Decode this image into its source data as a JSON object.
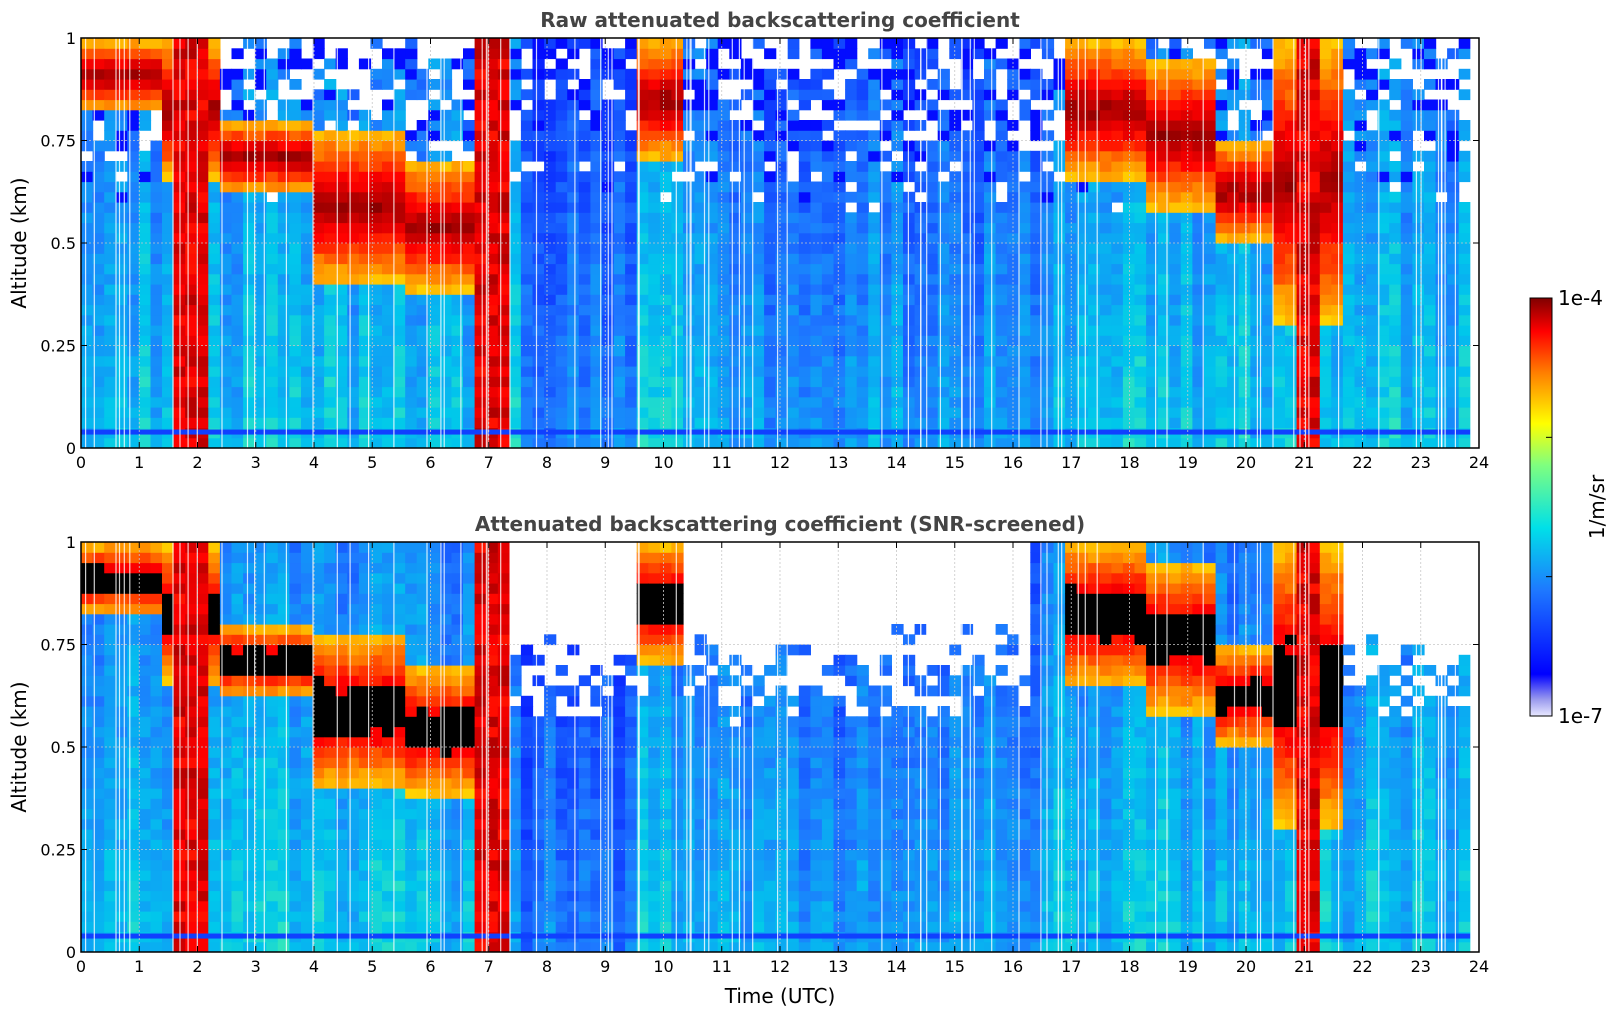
{
  "chart_data": [
    {
      "type": "heatmap",
      "title": "Raw attenuated backscattering coefficient",
      "xlabel": "",
      "ylabel": "Altitude (km)",
      "xlim": [
        0,
        24
      ],
      "ylim": [
        0,
        1
      ],
      "xticks": [
        "0",
        "1",
        "2",
        "3",
        "4",
        "5",
        "6",
        "7",
        "8",
        "9",
        "10",
        "11",
        "12",
        "13",
        "14",
        "15",
        "16",
        "17",
        "18",
        "19",
        "20",
        "21",
        "22",
        "23",
        "24"
      ],
      "yticks": [
        "0",
        "0.25",
        "0.5",
        "0.75",
        "1"
      ],
      "grid": true,
      "snr_screened": false,
      "layers": [
        {
          "t0": 0.0,
          "t1": 1.3,
          "base": 0.82,
          "top": 1.0
        },
        {
          "t0": 1.3,
          "t1": 2.4,
          "base": 0.65,
          "top": 1.0
        },
        {
          "t0": 2.4,
          "t1": 4.0,
          "base": 0.62,
          "top": 0.8
        },
        {
          "t0": 4.0,
          "t1": 5.5,
          "base": 0.4,
          "top": 0.78
        },
        {
          "t0": 5.5,
          "t1": 6.8,
          "base": 0.38,
          "top": 0.7
        },
        {
          "t0": 9.6,
          "t1": 10.4,
          "base": 0.7,
          "top": 1.0
        },
        {
          "t0": 16.8,
          "t1": 18.2,
          "base": 0.65,
          "top": 1.0
        },
        {
          "t0": 18.2,
          "t1": 19.5,
          "base": 0.58,
          "top": 0.95
        },
        {
          "t0": 19.5,
          "t1": 20.5,
          "base": 0.5,
          "top": 0.75
        },
        {
          "t0": 20.5,
          "t1": 21.7,
          "base": 0.3,
          "top": 1.0
        }
      ],
      "precipitation": [
        {
          "t0": 1.65,
          "t1": 2.2
        },
        {
          "t0": 6.85,
          "t1": 7.35
        },
        {
          "t0": 20.9,
          "t1": 21.3
        }
      ]
    },
    {
      "type": "heatmap",
      "title": "Attenuated backscattering coefficient (SNR-screened)",
      "xlabel": "Time (UTC)",
      "ylabel": "Altitude (km)",
      "xlim": [
        0,
        24
      ],
      "ylim": [
        0,
        1
      ],
      "xticks": [
        "0",
        "1",
        "2",
        "3",
        "4",
        "5",
        "6",
        "7",
        "8",
        "9",
        "10",
        "11",
        "12",
        "13",
        "14",
        "15",
        "16",
        "17",
        "18",
        "19",
        "20",
        "21",
        "22",
        "23",
        "24"
      ],
      "yticks": [
        "0",
        "0.25",
        "0.5",
        "0.75",
        "1"
      ],
      "grid": true,
      "snr_screened": true,
      "colorbar": {
        "label": "1/m/sr",
        "max_label": "1e-4",
        "min_label": "1e-7",
        "scale": "log",
        "range": [
          1e-07,
          0.0001
        ],
        "colormap": "jet",
        "placement": "right"
      }
    }
  ]
}
